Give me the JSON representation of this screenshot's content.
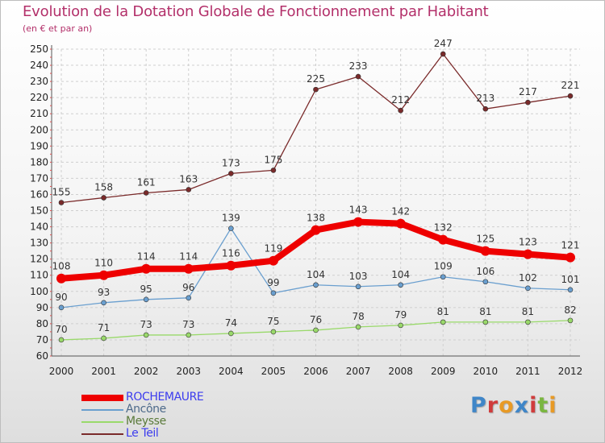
{
  "header": {
    "title": "Evolution de la Dotation Globale de Fonctionnement par Habitant",
    "subtitle": "(en € et par an)"
  },
  "logo": {
    "letters": [
      "P",
      "r",
      "o",
      "x",
      "i",
      "t",
      "i"
    ],
    "colors": [
      "#3f86c8",
      "#d03c3c",
      "#e89a25",
      "#3f86c8",
      "#d03c3c",
      "#7ab640",
      "#e89a25"
    ]
  },
  "chart_data": {
    "type": "line",
    "x": [
      "2000",
      "2001",
      "2002",
      "2003",
      "2004",
      "2005",
      "2006",
      "2007",
      "2008",
      "2009",
      "2010",
      "2011",
      "2012"
    ],
    "ylim": [
      60,
      250
    ],
    "yticks": [
      60,
      70,
      80,
      90,
      100,
      110,
      120,
      130,
      140,
      150,
      160,
      170,
      180,
      190,
      200,
      210,
      220,
      230,
      240,
      250
    ],
    "grid": true,
    "legend_position": "bottom-left",
    "series": [
      {
        "name": "ROCHEMAURE",
        "color": "#ee0000",
        "emphasis": true,
        "values": [
          108,
          110,
          114,
          114,
          116,
          119,
          138,
          143,
          142,
          132,
          125,
          123,
          121
        ]
      },
      {
        "name": "Ancône",
        "color": "#6a9fcf",
        "values": [
          90,
          93,
          95,
          96,
          139,
          99,
          104,
          103,
          104,
          109,
          106,
          102,
          101
        ]
      },
      {
        "name": "Meysse",
        "color": "#99d96a",
        "values": [
          70,
          71,
          73,
          73,
          74,
          75,
          76,
          78,
          79,
          81,
          81,
          81,
          82
        ]
      },
      {
        "name": "Le Teil",
        "color": "#7a2a2a",
        "values": [
          155,
          158,
          161,
          163,
          173,
          175,
          225,
          233,
          212,
          247,
          213,
          217,
          221
        ]
      }
    ],
    "legend_text_colors": [
      "#3c3cee",
      "#4d6a8a",
      "#5a7a3a",
      "#3c3cee"
    ]
  }
}
